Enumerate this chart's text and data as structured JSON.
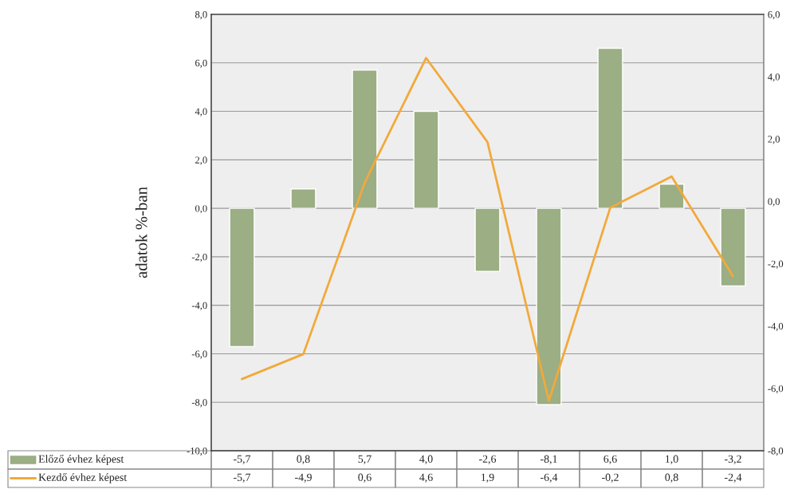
{
  "chart_data": {
    "type": "bar",
    "ylabel": "adatok %-ban",
    "categories": [
      null,
      null,
      null,
      null,
      null,
      null,
      null,
      null,
      null
    ],
    "series": [
      {
        "name": "Előző évhez képest",
        "color": "#9bae84",
        "values": [
          -5.7,
          0.8,
          5.7,
          4.0,
          -2.6,
          -8.1,
          6.6,
          1.0,
          -3.2
        ],
        "value_labels": [
          "-5,7",
          "0,8",
          "5,7",
          "4,0",
          "-2,6",
          "-8,1",
          "6,6",
          "1,0",
          "-3,2"
        ]
      },
      {
        "name": "Kezdő évhez képest",
        "type": "line",
        "axis": "y2",
        "color": "#f2a93b",
        "values": [
          -5.7,
          -4.9,
          0.6,
          4.6,
          1.9,
          -6.4,
          -0.2,
          0.8,
          -2.4
        ],
        "value_labels": [
          "-5,7",
          "-4,9",
          "0,6",
          "4,6",
          "1,9",
          "-6,4",
          "-0,2",
          "0,8",
          "-2,4"
        ]
      }
    ],
    "ylim": [
      -10,
      8
    ],
    "yticks": [
      {
        "value": -10,
        "label": "-10,0"
      },
      {
        "value": -8,
        "label": "-8,0"
      },
      {
        "value": -6,
        "label": "-6,0"
      },
      {
        "value": -4,
        "label": "-4,0"
      },
      {
        "value": -2,
        "label": "-2,0"
      },
      {
        "value": 0,
        "label": "0,0"
      },
      {
        "value": 2,
        "label": "2,0"
      },
      {
        "value": 4,
        "label": "4,0"
      },
      {
        "value": 6,
        "label": "6,0"
      },
      {
        "value": 8,
        "label": "8,0"
      }
    ],
    "y2lim": [
      -8,
      6
    ],
    "y2ticks": [
      {
        "value": -8,
        "label": "-8,0"
      },
      {
        "value": -6,
        "label": "-6,0"
      },
      {
        "value": -4,
        "label": "-4,0"
      },
      {
        "value": -2,
        "label": "-2,0"
      },
      {
        "value": 0,
        "label": "0,0"
      },
      {
        "value": 2,
        "label": "2,0"
      },
      {
        "value": 4,
        "label": "4,0"
      },
      {
        "value": 6,
        "label": "6,0"
      }
    ],
    "grid": "y",
    "legend": "bottom",
    "marker": "none",
    "line_style": "solid"
  }
}
